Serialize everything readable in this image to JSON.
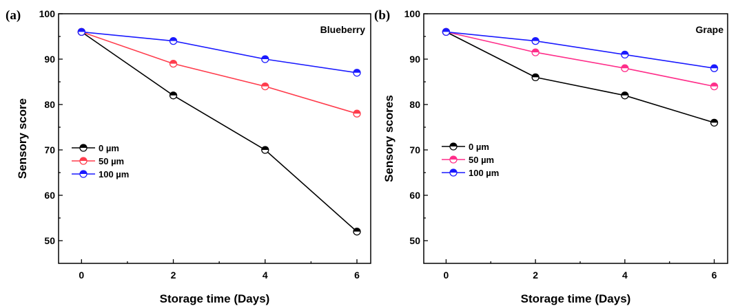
{
  "chart_data": [
    {
      "type": "line",
      "panel_label": "(a)",
      "annotation": "Blueberry",
      "xlabel": "Storage time (Days)",
      "ylabel": "Sensory score",
      "x": [
        0,
        2,
        4,
        6
      ],
      "xticks": [
        0,
        2,
        4,
        6
      ],
      "yticks": [
        50,
        60,
        70,
        80,
        90,
        100
      ],
      "xlim": [
        -0.5,
        6.3
      ],
      "ylim": [
        45,
        100
      ],
      "grid": false,
      "legend_position": "center-left",
      "series": [
        {
          "name": "0 µm",
          "color": "#000000",
          "values": [
            96,
            82,
            70,
            52
          ]
        },
        {
          "name": "50 µm",
          "color": "#ff3c4c",
          "values": [
            96,
            89,
            84,
            78
          ]
        },
        {
          "name": "100 µm",
          "color": "#1a1aff",
          "values": [
            96,
            94,
            90,
            87
          ]
        }
      ]
    },
    {
      "type": "line",
      "panel_label": "(b)",
      "annotation": "Grape",
      "xlabel": "Storage time (Days)",
      "ylabel": "Sensory scores",
      "x": [
        0,
        2,
        4,
        6
      ],
      "xticks": [
        0,
        2,
        4,
        6
      ],
      "yticks": [
        50,
        60,
        70,
        80,
        90,
        100
      ],
      "xlim": [
        -0.5,
        6.3
      ],
      "ylim": [
        45,
        100
      ],
      "grid": false,
      "legend_position": "center-left",
      "series": [
        {
          "name": "0 µm",
          "color": "#000000",
          "values": [
            96,
            86,
            82,
            76
          ]
        },
        {
          "name": "50 µm",
          "color": "#ff2e8a",
          "values": [
            96,
            91.5,
            88,
            84
          ]
        },
        {
          "name": "100 µm",
          "color": "#1a1aff",
          "values": [
            96,
            94,
            91,
            88
          ]
        }
      ]
    }
  ]
}
